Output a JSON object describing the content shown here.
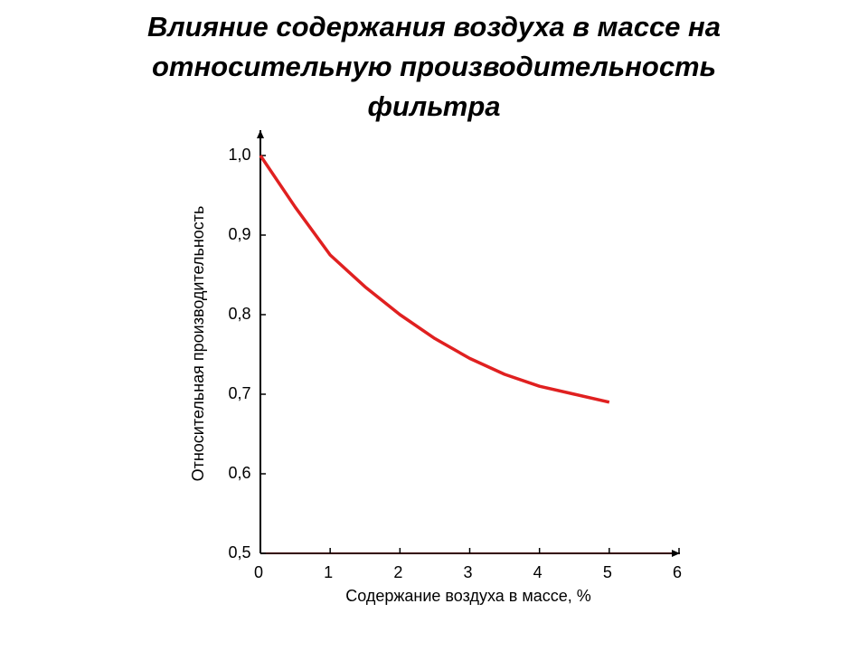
{
  "chart_data": {
    "type": "line",
    "title": [
      "Влияние содержания воздуха в массе на",
      "относительную производительность",
      "фильтра"
    ],
    "x_label": "Содержание воздуха в массе, %",
    "y_label": "Относительная производительность",
    "x": [
      0,
      0.5,
      1,
      1.5,
      2,
      2.5,
      3,
      3.5,
      4,
      4.5,
      5
    ],
    "series": [
      {
        "name": "Относительная производительность",
        "color": "#e02020",
        "values": [
          1.0,
          0.935,
          0.875,
          0.835,
          0.8,
          0.77,
          0.745,
          0.725,
          0.71,
          0.7,
          0.69
        ]
      }
    ],
    "xlim": [
      0,
      6
    ],
    "xticks": [
      0,
      1,
      2,
      3,
      4,
      5,
      6
    ],
    "ylim": [
      0.5,
      1.0
    ],
    "yticks": [
      {
        "value": 0.5,
        "label": "0,5"
      },
      {
        "value": 0.6,
        "label": "0,6"
      },
      {
        "value": 0.7,
        "label": "0,7"
      },
      {
        "value": 0.8,
        "label": "0,8"
      },
      {
        "value": 0.9,
        "label": "0,9"
      },
      {
        "value": 1.0,
        "label": "1,0"
      }
    ],
    "grid": false
  }
}
